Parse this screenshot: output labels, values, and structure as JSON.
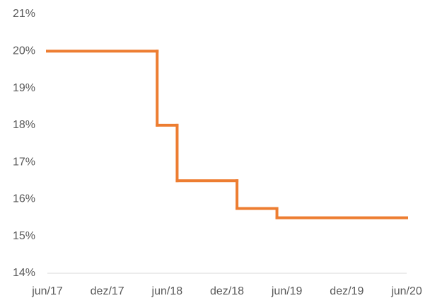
{
  "chart_data": {
    "type": "line",
    "step": "post",
    "x": [
      "2017-06",
      "2018-05",
      "2018-07",
      "2019-01",
      "2019-05"
    ],
    "series": [
      {
        "color": "#ed7d31",
        "values": [
          20,
          18,
          16.5,
          15.75,
          15.5
        ]
      }
    ],
    "xlim": [
      "2017-06",
      "2020-06"
    ],
    "xticks": [
      {
        "value": "2017-06",
        "label": "jun/17"
      },
      {
        "value": "2017-12",
        "label": "dez/17"
      },
      {
        "value": "2018-06",
        "label": "jun/18"
      },
      {
        "value": "2018-12",
        "label": "dez/18"
      },
      {
        "value": "2019-06",
        "label": "jun/19"
      },
      {
        "value": "2019-12",
        "label": "dez/19"
      },
      {
        "value": "2020-06",
        "label": "jun/20"
      }
    ],
    "ylim": [
      14,
      21
    ],
    "yticks": [
      {
        "value": 14,
        "label": "14%"
      },
      {
        "value": 15,
        "label": "15%"
      },
      {
        "value": 16,
        "label": "16%"
      },
      {
        "value": 17,
        "label": "17%"
      },
      {
        "value": 18,
        "label": "18%"
      },
      {
        "value": 19,
        "label": "19%"
      },
      {
        "value": 20,
        "label": "20%"
      },
      {
        "value": 21,
        "label": "21%"
      }
    ],
    "grid": false
  }
}
